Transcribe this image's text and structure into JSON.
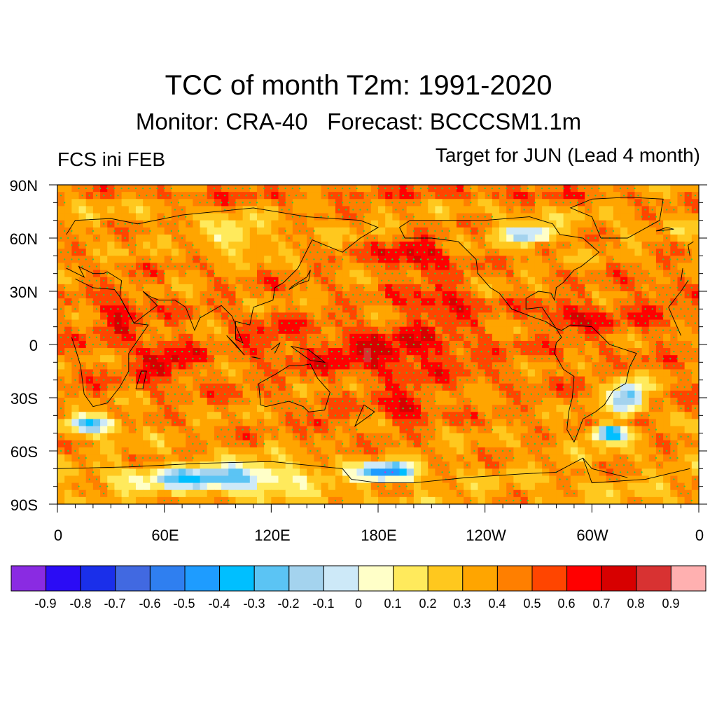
{
  "title": "TCC of month T2m: 1991-2020",
  "subtitle": "Monitor: CRA-40   Forecast: BCCCSM1.1m",
  "left_label": "FCS ini FEB",
  "right_label": "Target for JUN (Lead 4 month)",
  "lat_labels": [
    "90N",
    "60N",
    "30N",
    "0",
    "30S",
    "60S",
    "90S"
  ],
  "lon_labels": [
    "0",
    "60E",
    "120E",
    "180E",
    "120W",
    "60W",
    "0"
  ],
  "colorbar": {
    "colors": [
      "#8a2be2",
      "#2b0cf5",
      "#1a2fea",
      "#4169e1",
      "#2f7ff0",
      "#1e9cff",
      "#00bfff",
      "#5bc4f4",
      "#a4d3ee",
      "#cde9f8",
      "#ffffc8",
      "#ffea5c",
      "#ffc81e",
      "#ffa500",
      "#ff7f00",
      "#ff4500",
      "#ff0000",
      "#d70000",
      "#d83232",
      "#ffb0b0"
    ],
    "tick_labels": [
      "-0.9",
      "-0.8",
      "-0.7",
      "-0.6",
      "-0.5",
      "-0.4",
      "-0.3",
      "-0.2",
      "-0.1",
      "0",
      "0.1",
      "0.2",
      "0.3",
      "0.4",
      "0.5",
      "0.6",
      "0.7",
      "0.8",
      "0.9"
    ],
    "levels": [
      -0.9,
      -0.8,
      -0.7,
      -0.6,
      -0.5,
      -0.4,
      -0.3,
      -0.2,
      -0.1,
      0,
      0.1,
      0.2,
      0.3,
      0.4,
      0.5,
      0.6,
      0.7,
      0.8,
      0.9
    ]
  },
  "map_extent": {
    "lon_range": [
      0,
      360
    ],
    "lat_range": [
      -90,
      90
    ],
    "central_longitude": 180
  },
  "significance_marker_color": "#2ecc40",
  "coastline_color": "#000000",
  "chart_data": {
    "type": "heatmap",
    "title": "TCC of month T2m: 1991-2020",
    "variable": "T2m temporal correlation coefficient",
    "levels": [
      -0.9,
      -0.8,
      -0.7,
      -0.6,
      -0.5,
      -0.4,
      -0.3,
      -0.2,
      -0.1,
      0,
      0.1,
      0.2,
      0.3,
      0.4,
      0.5,
      0.6,
      0.7,
      0.8,
      0.9
    ],
    "features": [
      {
        "name": "tropical-pacific",
        "lon": 185,
        "lat": -5,
        "rlon": 45,
        "rlat": 12,
        "value": 0.72
      },
      {
        "name": "north-pacific",
        "lon": 200,
        "lat": 50,
        "rlon": 22,
        "rlat": 10,
        "value": 0.72
      },
      {
        "name": "central-pacific-north",
        "lon": 215,
        "lat": 22,
        "rlon": 20,
        "rlat": 10,
        "value": 0.7
      },
      {
        "name": "south-pacific",
        "lon": 195,
        "lat": -35,
        "rlon": 15,
        "rlat": 10,
        "value": 0.7
      },
      {
        "name": "tasman",
        "lon": 150,
        "lat": -45,
        "rlon": 10,
        "rlat": 6,
        "value": 0.68
      },
      {
        "name": "indian-ocean",
        "lon": 60,
        "lat": -10,
        "rlon": 15,
        "rlat": 12,
        "value": 0.72
      },
      {
        "name": "red-sea-arabia",
        "lon": 35,
        "lat": 15,
        "rlon": 12,
        "rlat": 15,
        "value": 0.65
      },
      {
        "name": "caribbean",
        "lon": 290,
        "lat": 15,
        "rlon": 18,
        "rlat": 8,
        "value": 0.7
      },
      {
        "name": "south-atlantic",
        "lon": 320,
        "lat": -45,
        "rlon": 10,
        "rlat": 5,
        "value": 0.68
      },
      {
        "name": "north-atlantic",
        "lon": 330,
        "lat": 20,
        "rlon": 20,
        "rlat": 15,
        "value": 0.55
      },
      {
        "name": "maritime-continent",
        "lon": 120,
        "lat": 5,
        "rlon": 15,
        "rlat": 10,
        "value": 0.6
      },
      {
        "name": "arctic",
        "lon": 180,
        "lat": 85,
        "rlon": 180,
        "rlat": 5,
        "value": 0.55
      },
      {
        "name": "antarctic",
        "lon": 90,
        "lat": -75,
        "rlon": 45,
        "rlat": 7,
        "value": -0.3
      },
      {
        "name": "ross-sea",
        "lon": 185,
        "lat": -72,
        "rlon": 15,
        "rlat": 5,
        "value": -0.5
      },
      {
        "name": "southern-ocean-south-america",
        "lon": 310,
        "lat": -50,
        "rlon": 10,
        "rlat": 5,
        "value": -0.55
      },
      {
        "name": "south-atlantic-west",
        "lon": 320,
        "lat": -30,
        "rlon": 10,
        "rlat": 10,
        "value": -0.3
      },
      {
        "name": "southern-indian",
        "lon": 20,
        "lat": -45,
        "rlon": 15,
        "rlat": 5,
        "value": -0.3
      },
      {
        "name": "canada",
        "lon": 265,
        "lat": 62,
        "rlon": 15,
        "rlat": 5,
        "value": -0.2
      },
      {
        "name": "siberia",
        "lon": 100,
        "lat": 60,
        "rlon": 15,
        "rlat": 8,
        "value": 0.05
      }
    ]
  }
}
